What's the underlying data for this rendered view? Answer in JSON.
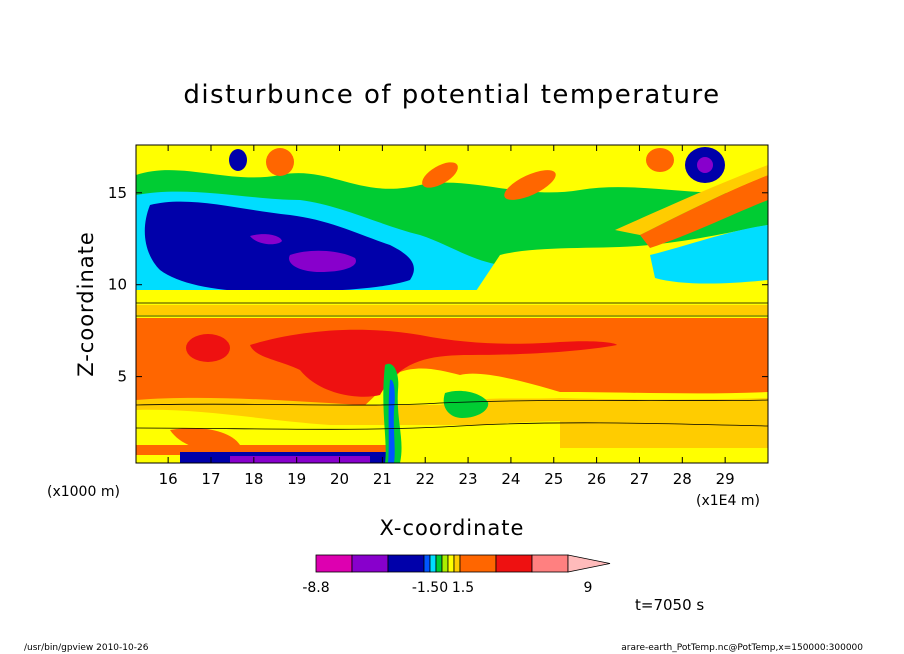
{
  "chart_data": {
    "type": "heatmap",
    "title": "disturbunce of potential temperature",
    "xlabel": "X-coordinate",
    "ylabel": "Z-coordinate",
    "x_unit_left": "(x1000 m)",
    "x_unit_right": "(x1E4 m)",
    "xlim": [
      15.25,
      30.0
    ],
    "ylim": [
      0.3,
      17.6
    ],
    "x_ticks": [
      "16",
      "17",
      "18",
      "19",
      "20",
      "21",
      "22",
      "23",
      "24",
      "25",
      "26",
      "27",
      "28",
      "29"
    ],
    "y_ticks": [
      "5",
      "10",
      "15"
    ],
    "colorbar": {
      "colors": [
        "#dd00b0",
        "#8800cc",
        "#0000aa",
        "#0055ff",
        "#00ddff",
        "#00cc33",
        "#aaee00",
        "#ffff00",
        "#ffcc00",
        "#ff6600",
        "#ee1111",
        "#ff8080",
        "#ffbbbb"
      ],
      "labels": [
        "-8.8",
        "-1.50",
        "1.5",
        "9"
      ]
    },
    "time_label": "t=7050 s"
  },
  "footer": {
    "left": "/usr/bin/gpview   2010-10-26",
    "right": "arare-earth_PotTemp.nc@PotTemp,x=150000:300000"
  }
}
